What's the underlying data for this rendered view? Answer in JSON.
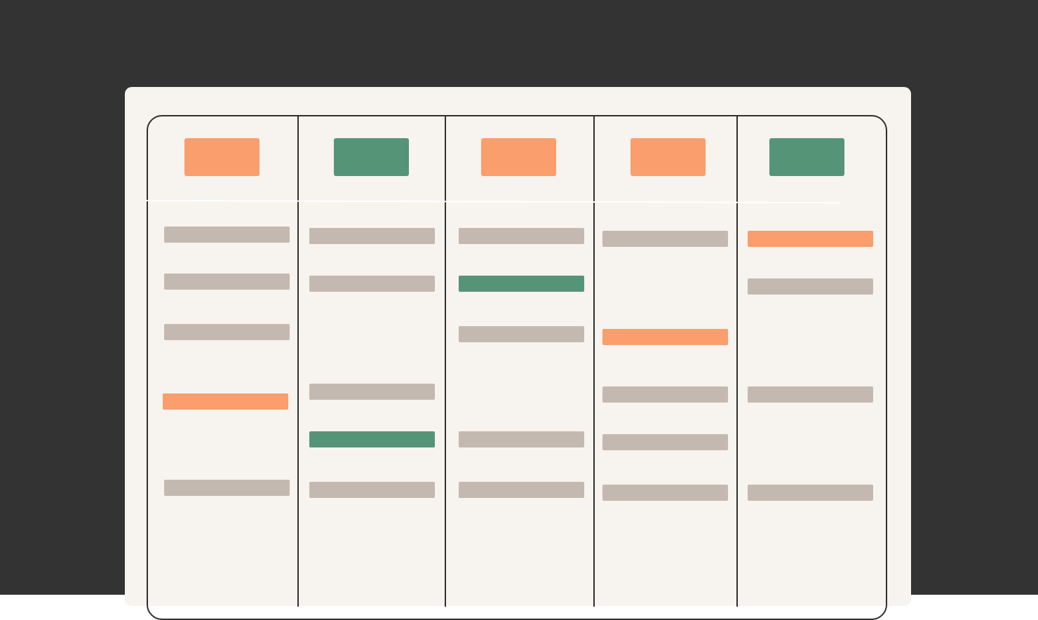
{
  "colors": {
    "background": "#333333",
    "card": "#f7f3ee",
    "border": "#2f2f2f",
    "neutral": "#c4b9b0",
    "orange": "#f99e6c",
    "green": "#569478"
  },
  "columns": [
    {
      "tag_color": "orange",
      "tasks": [
        "neutral",
        "neutral",
        "neutral",
        "orange",
        "neutral"
      ]
    },
    {
      "tag_color": "green",
      "tasks": [
        "neutral",
        "neutral",
        "neutral",
        "green",
        "neutral"
      ]
    },
    {
      "tag_color": "orange",
      "tasks": [
        "neutral",
        "green",
        "neutral",
        "neutral",
        "neutral"
      ]
    },
    {
      "tag_color": "orange",
      "tasks": [
        "neutral",
        "orange",
        "neutral",
        "neutral",
        "neutral"
      ]
    },
    {
      "tag_color": "green",
      "tasks": [
        "orange",
        "neutral",
        "neutral",
        "neutral"
      ]
    }
  ]
}
